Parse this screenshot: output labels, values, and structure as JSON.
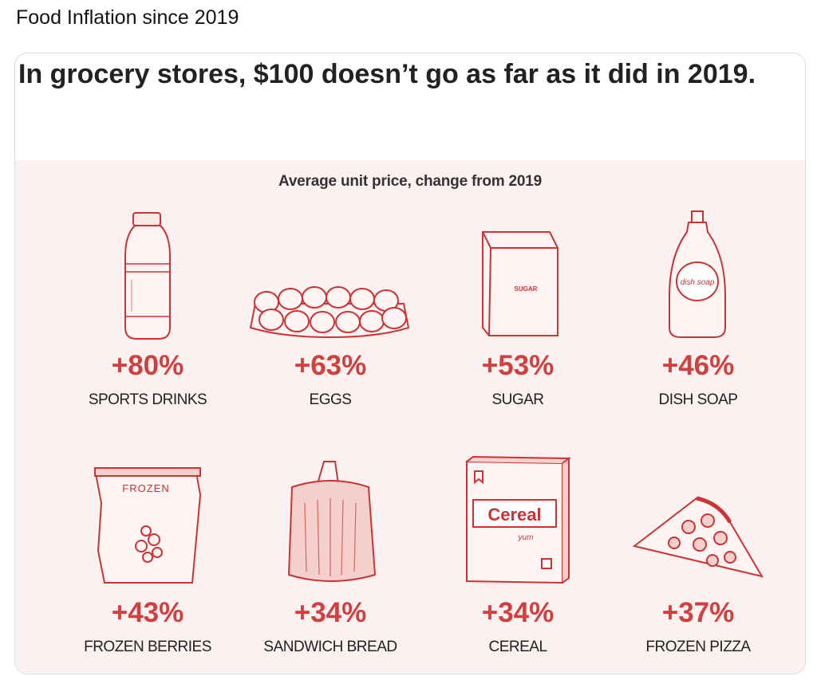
{
  "post": {
    "text": "Food Inflation since 2019"
  },
  "card": {
    "headline": "In grocery stores, $100 doesn’t go as far as it did in 2019."
  },
  "chart_data": {
    "type": "table",
    "title": "Average unit price, change from 2019",
    "accent_color": "#d1403e",
    "items": [
      {
        "category": "SPORTS DRINKS",
        "value": 80,
        "label": "+80%",
        "icon": "sports-drink-bottle-icon"
      },
      {
        "category": "EGGS",
        "value": 63,
        "label": "+63%",
        "icon": "egg-carton-icon"
      },
      {
        "category": "SUGAR",
        "value": 53,
        "label": "+53%",
        "icon": "sugar-bag-icon",
        "icon_text": "SUGAR"
      },
      {
        "category": "DISH SOAP",
        "value": 46,
        "label": "+46%",
        "icon": "dish-soap-bottle-icon",
        "icon_text": "dish soap"
      },
      {
        "category": "FROZEN BERRIES",
        "value": 43,
        "label": "+43%",
        "icon": "frozen-berries-bag-icon",
        "icon_text": "FROZEN"
      },
      {
        "category": "SANDWICH BREAD",
        "value": 34,
        "label": "+34%",
        "icon": "bread-loaf-icon"
      },
      {
        "category": "CEREAL",
        "value": 34,
        "label": "+34%",
        "icon": "cereal-box-icon",
        "icon_text": "Cereal",
        "icon_subtext": "yum"
      },
      {
        "category": "FROZEN PIZZA",
        "value": 37,
        "label": "+37%",
        "icon": "pizza-slice-icon"
      }
    ]
  }
}
